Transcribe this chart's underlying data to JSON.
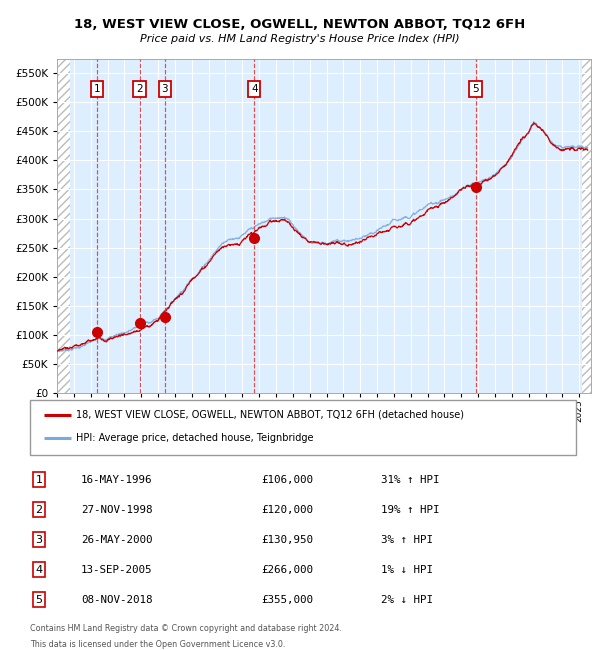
{
  "title": "18, WEST VIEW CLOSE, OGWELL, NEWTON ABBOT, TQ12 6FH",
  "subtitle": "Price paid vs. HM Land Registry's House Price Index (HPI)",
  "hpi_color": "#7aaadd",
  "price_color": "#cc0000",
  "plot_bg": "#ddeeff",
  "grid_color": "#ffffff",
  "ylim": [
    0,
    575000
  ],
  "yticks": [
    0,
    50000,
    100000,
    150000,
    200000,
    250000,
    300000,
    350000,
    400000,
    450000,
    500000,
    550000
  ],
  "xlim_start": 1994.0,
  "xlim_end": 2025.7,
  "hatch_end": 1994.75,
  "hatch_start2": 2025.17,
  "sales": [
    {
      "year": 1996.37,
      "price": 106000,
      "label": "1"
    },
    {
      "year": 1998.9,
      "price": 120000,
      "label": "2"
    },
    {
      "year": 2000.4,
      "price": 130950,
      "label": "3"
    },
    {
      "year": 2005.71,
      "price": 266000,
      "label": "4"
    },
    {
      "year": 2018.85,
      "price": 355000,
      "label": "5"
    }
  ],
  "legend_entries": [
    {
      "color": "#cc0000",
      "label": "18, WEST VIEW CLOSE, OGWELL, NEWTON ABBOT, TQ12 6FH (detached house)"
    },
    {
      "color": "#7aaadd",
      "label": "HPI: Average price, detached house, Teignbridge"
    }
  ],
  "table_rows": [
    {
      "num": "1",
      "date": "16-MAY-1996",
      "price": "£106,000",
      "hpi": "31% ↑ HPI"
    },
    {
      "num": "2",
      "date": "27-NOV-1998",
      "price": "£120,000",
      "hpi": "19% ↑ HPI"
    },
    {
      "num": "3",
      "date": "26-MAY-2000",
      "price": "£130,950",
      "hpi": "3% ↑ HPI"
    },
    {
      "num": "4",
      "date": "13-SEP-2005",
      "price": "£266,000",
      "hpi": "1% ↓ HPI"
    },
    {
      "num": "5",
      "date": "08-NOV-2018",
      "price": "£355,000",
      "hpi": "2% ↓ HPI"
    }
  ],
  "footnote1": "Contains HM Land Registry data © Crown copyright and database right 2024.",
  "footnote2": "This data is licensed under the Open Government Licence v3.0."
}
